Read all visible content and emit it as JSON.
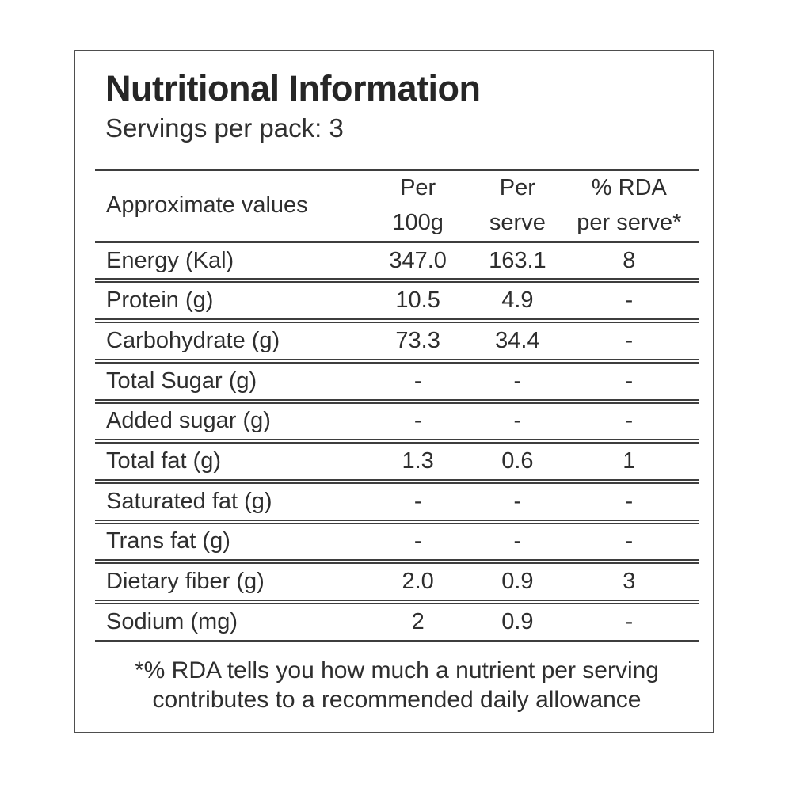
{
  "label": {
    "title": "Nutritional Information",
    "servings_line": "Servings per pack: 3",
    "table": {
      "header": {
        "approximate_values": "Approximate values",
        "per_100g": [
          "Per",
          "100g"
        ],
        "per_serve": [
          "Per",
          "serve"
        ],
        "rda_per_serve": [
          "% RDA",
          "per serve*"
        ]
      },
      "rows": [
        {
          "nutrient": "Energy (Kal)",
          "per_100g": "347.0",
          "per_serve": "163.1",
          "rda_per_serve": "8"
        },
        {
          "nutrient": "Protein (g)",
          "per_100g": "10.5",
          "per_serve": "4.9",
          "rda_per_serve": "-"
        },
        {
          "nutrient": "Carbohydrate (g)",
          "per_100g": "73.3",
          "per_serve": "34.4",
          "rda_per_serve": "-"
        },
        {
          "nutrient": "Total Sugar (g)",
          "per_100g": "-",
          "per_serve": "-",
          "rda_per_serve": "-"
        },
        {
          "nutrient": "Added sugar (g)",
          "per_100g": "-",
          "per_serve": "-",
          "rda_per_serve": "-"
        },
        {
          "nutrient": "Total fat (g)",
          "per_100g": "1.3",
          "per_serve": "0.6",
          "rda_per_serve": "1"
        },
        {
          "nutrient": "Saturated fat (g)",
          "per_100g": "-",
          "per_serve": "-",
          "rda_per_serve": "-"
        },
        {
          "nutrient": "Trans fat (g)",
          "per_100g": "-",
          "per_serve": "-",
          "rda_per_serve": "-"
        },
        {
          "nutrient": "Dietary fiber (g)",
          "per_100g": "2.0",
          "per_serve": "0.9",
          "rda_per_serve": "3"
        },
        {
          "nutrient": "Sodium (mg)",
          "per_100g": "2",
          "per_serve": "0.9",
          "rda_per_serve": "-"
        }
      ]
    },
    "footnote": [
      "*% RDA tells you how much a nutrient per serving",
      "contributes to a recommended daily allowance"
    ],
    "colors": {
      "text": "#2e2e2e",
      "rule": "#3e3e3e",
      "border": "#4e4e4e",
      "background": "#ffffff"
    }
  }
}
